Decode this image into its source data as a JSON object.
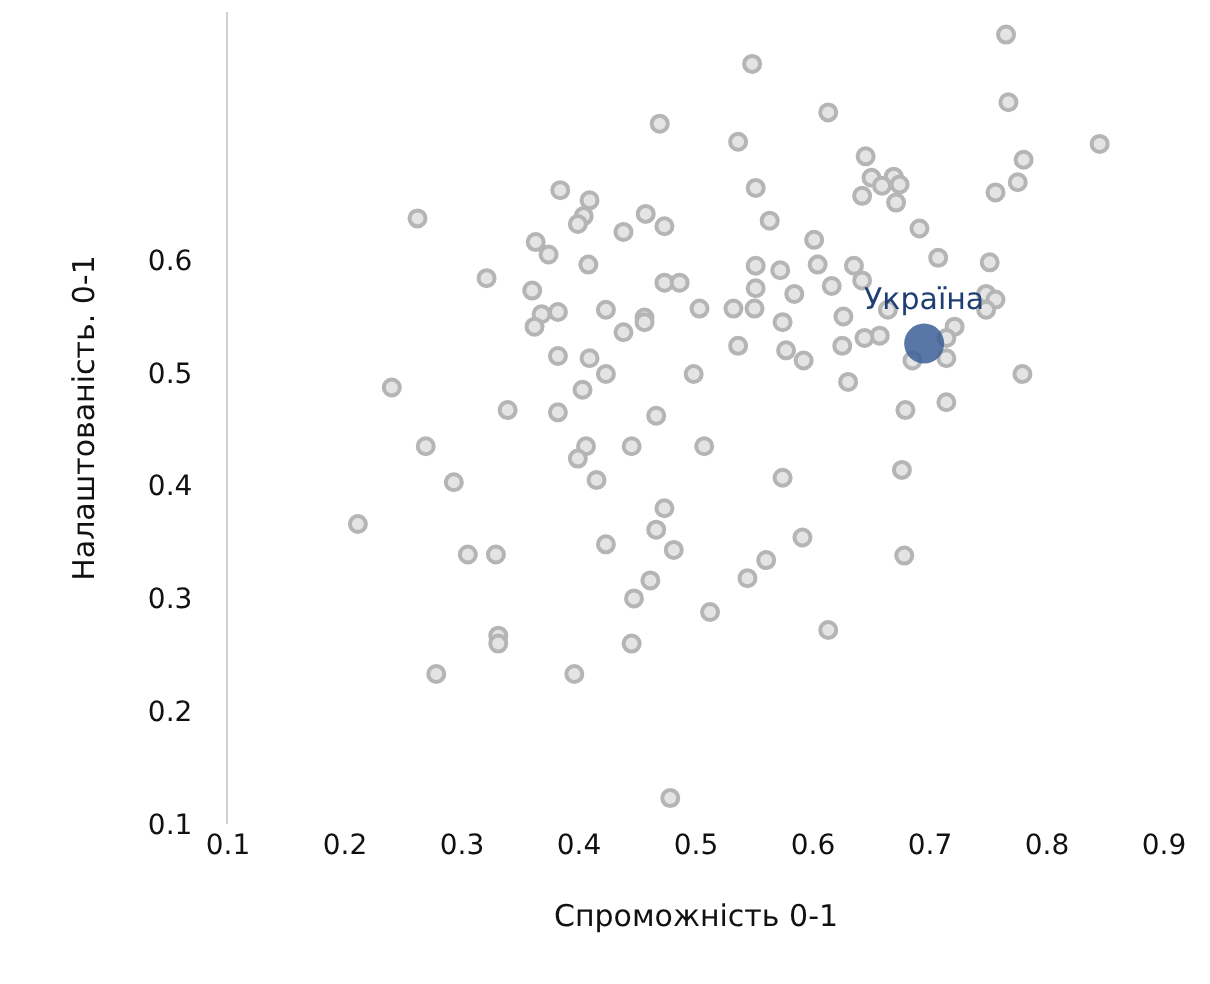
{
  "chart_data": {
    "type": "scatter",
    "xlabel": "Спроможність 0-1",
    "ylabel": "Налаштованість. 0-1",
    "xlim": [
      0.1,
      0.9
    ],
    "ylim": [
      0.1,
      0.82
    ],
    "xticks": [
      0.1,
      0.2,
      0.3,
      0.4,
      0.5,
      0.6,
      0.7,
      0.8,
      0.9
    ],
    "yticks": [
      0.1,
      0.2,
      0.3,
      0.4,
      0.5,
      0.6
    ],
    "grid": false,
    "legend": false,
    "marker": "circle",
    "series": [
      {
        "color": "#b5b5b5",
        "x": [
          0.548,
          0.469,
          0.536,
          0.551,
          0.384,
          0.409,
          0.404,
          0.399,
          0.457,
          0.473,
          0.438,
          0.262,
          0.363,
          0.374,
          0.408,
          0.321,
          0.36,
          0.473,
          0.486,
          0.551,
          0.551,
          0.503,
          0.532,
          0.55,
          0.382,
          0.368,
          0.362,
          0.423,
          0.456,
          0.456,
          0.438,
          0.536,
          0.382,
          0.409,
          0.423,
          0.498,
          0.403,
          0.24,
          0.339,
          0.382,
          0.466,
          0.269,
          0.406,
          0.399,
          0.445,
          0.507,
          0.293,
          0.415,
          0.473,
          0.211,
          0.466,
          0.305,
          0.329,
          0.423,
          0.481,
          0.461,
          0.447,
          0.544,
          0.512,
          0.331,
          0.331,
          0.445,
          0.278,
          0.396,
          0.478,
          0.765,
          0.613,
          0.767,
          0.845,
          0.645,
          0.78,
          0.65,
          0.669,
          0.659,
          0.674,
          0.775,
          0.756,
          0.642,
          0.671,
          0.563,
          0.691,
          0.601,
          0.707,
          0.751,
          0.572,
          0.604,
          0.635,
          0.642,
          0.616,
          0.584,
          0.748,
          0.756,
          0.748,
          0.664,
          0.626,
          0.574,
          0.721,
          0.714,
          0.657,
          0.644,
          0.577,
          0.625,
          0.592,
          0.685,
          0.714,
          0.63,
          0.779,
          0.679,
          0.714,
          0.574,
          0.676,
          0.591,
          0.56,
          0.678,
          0.613
        ],
        "values": [
          0.774,
          0.721,
          0.705,
          0.664,
          0.662,
          0.653,
          0.639,
          0.632,
          0.641,
          0.63,
          0.625,
          0.637,
          0.616,
          0.605,
          0.596,
          0.584,
          0.573,
          0.58,
          0.58,
          0.595,
          0.575,
          0.557,
          0.557,
          0.557,
          0.554,
          0.552,
          0.541,
          0.556,
          0.549,
          0.545,
          0.536,
          0.524,
          0.515,
          0.513,
          0.499,
          0.499,
          0.485,
          0.487,
          0.467,
          0.465,
          0.462,
          0.435,
          0.435,
          0.424,
          0.435,
          0.435,
          0.403,
          0.405,
          0.38,
          0.366,
          0.361,
          0.339,
          0.339,
          0.348,
          0.343,
          0.316,
          0.3,
          0.318,
          0.288,
          0.267,
          0.26,
          0.26,
          0.233,
          0.233,
          0.123,
          0.8,
          0.731,
          0.74,
          0.703,
          0.692,
          0.689,
          0.673,
          0.674,
          0.666,
          0.667,
          0.669,
          0.66,
          0.657,
          0.651,
          0.635,
          0.628,
          0.618,
          0.602,
          0.598,
          0.591,
          0.596,
          0.595,
          0.582,
          0.577,
          0.57,
          0.57,
          0.565,
          0.556,
          0.556,
          0.55,
          0.545,
          0.541,
          0.531,
          0.533,
          0.531,
          0.52,
          0.524,
          0.511,
          0.511,
          0.513,
          0.492,
          0.499,
          0.467,
          0.474,
          0.407,
          0.414,
          0.354,
          0.334,
          0.338,
          0.272
        ]
      },
      {
        "name": "Україна",
        "color": "#3b5f96",
        "x": [
          0.695
        ],
        "values": [
          0.526
        ]
      }
    ]
  }
}
